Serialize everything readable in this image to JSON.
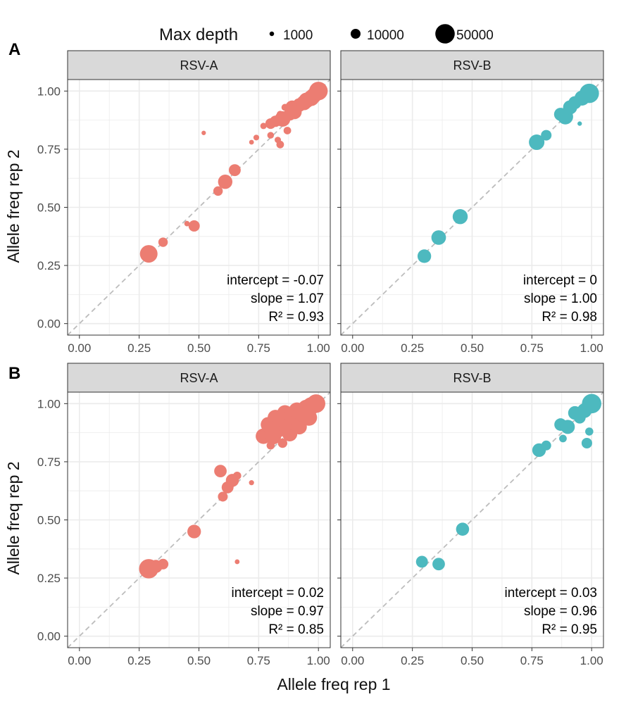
{
  "figure": {
    "legend_title": "Max depth",
    "legend_entries": [
      {
        "label": "1000",
        "value": 1000
      },
      {
        "label": "10000",
        "value": 10000
      },
      {
        "label": "50000",
        "value": 50000
      }
    ],
    "x_title": "Allele freq rep 1",
    "y_title": "Allele freq rep 2",
    "colors": {
      "RSV-A": "#ec7d72",
      "RSV-B": "#4db9bf",
      "strip": "#d9d9d9",
      "grid": "#ebebeb",
      "diagonal": "#bdbdbd"
    }
  },
  "chart_data": [
    {
      "type": "scatter",
      "row": "A",
      "panel": "RSV-A",
      "xlabel": "Allele freq rep 1",
      "ylabel": "Allele freq rep 2",
      "xlim": [
        0,
        1
      ],
      "ylim": [
        0,
        1
      ],
      "ticks": [
        0,
        0.25,
        0.5,
        0.75,
        1.0
      ],
      "tick_labels": [
        "0.00",
        "0.25",
        "0.50",
        "0.75",
        "1.00"
      ],
      "stats": {
        "intercept": "intercept = -0.07",
        "slope": "slope = 1.07",
        "r2": "R² = 0.93"
      },
      "points": [
        {
          "x": 0.29,
          "y": 0.3,
          "depth": 40000
        },
        {
          "x": 0.35,
          "y": 0.35,
          "depth": 9000
        },
        {
          "x": 0.45,
          "y": 0.43,
          "depth": 1800
        },
        {
          "x": 0.48,
          "y": 0.42,
          "depth": 14000
        },
        {
          "x": 0.52,
          "y": 0.82,
          "depth": 900
        },
        {
          "x": 0.58,
          "y": 0.57,
          "depth": 9000
        },
        {
          "x": 0.61,
          "y": 0.61,
          "depth": 25000
        },
        {
          "x": 0.65,
          "y": 0.66,
          "depth": 16000
        },
        {
          "x": 0.72,
          "y": 0.78,
          "depth": 1200
        },
        {
          "x": 0.74,
          "y": 0.8,
          "depth": 2200
        },
        {
          "x": 0.77,
          "y": 0.85,
          "depth": 3000
        },
        {
          "x": 0.8,
          "y": 0.86,
          "depth": 12000
        },
        {
          "x": 0.8,
          "y": 0.81,
          "depth": 3500
        },
        {
          "x": 0.82,
          "y": 0.87,
          "depth": 14000
        },
        {
          "x": 0.83,
          "y": 0.79,
          "depth": 3000
        },
        {
          "x": 0.84,
          "y": 0.9,
          "depth": 4000
        },
        {
          "x": 0.84,
          "y": 0.77,
          "depth": 5000
        },
        {
          "x": 0.85,
          "y": 0.88,
          "depth": 30000
        },
        {
          "x": 0.86,
          "y": 0.93,
          "depth": 4000
        },
        {
          "x": 0.87,
          "y": 0.83,
          "depth": 5000
        },
        {
          "x": 0.88,
          "y": 0.9,
          "depth": 18000
        },
        {
          "x": 0.89,
          "y": 0.93,
          "depth": 22000
        },
        {
          "x": 0.9,
          "y": 0.91,
          "depth": 25000
        },
        {
          "x": 0.92,
          "y": 0.94,
          "depth": 22000
        },
        {
          "x": 0.94,
          "y": 0.95,
          "depth": 28000
        },
        {
          "x": 0.95,
          "y": 0.96,
          "depth": 30000
        },
        {
          "x": 0.97,
          "y": 0.97,
          "depth": 32000
        },
        {
          "x": 0.98,
          "y": 0.98,
          "depth": 30000
        },
        {
          "x": 1.0,
          "y": 1.0,
          "depth": 45000
        }
      ]
    },
    {
      "type": "scatter",
      "row": "A",
      "panel": "RSV-B",
      "xlabel": "Allele freq rep 1",
      "ylabel": "Allele freq rep 2",
      "xlim": [
        0,
        1
      ],
      "ylim": [
        0,
        1
      ],
      "ticks": [
        0,
        0.25,
        0.5,
        0.75,
        1.0
      ],
      "tick_labels": [
        "0.00",
        "0.25",
        "0.50",
        "0.75",
        "1.00"
      ],
      "stats": {
        "intercept": "intercept = 0",
        "slope": "slope = 1.00",
        "r2": "R² = 0.98"
      },
      "points": [
        {
          "x": 0.3,
          "y": 0.29,
          "depth": 22000
        },
        {
          "x": 0.36,
          "y": 0.37,
          "depth": 26000
        },
        {
          "x": 0.45,
          "y": 0.46,
          "depth": 28000
        },
        {
          "x": 0.77,
          "y": 0.78,
          "depth": 30000
        },
        {
          "x": 0.81,
          "y": 0.81,
          "depth": 12000
        },
        {
          "x": 0.87,
          "y": 0.9,
          "depth": 20000
        },
        {
          "x": 0.89,
          "y": 0.89,
          "depth": 30000
        },
        {
          "x": 0.91,
          "y": 0.93,
          "depth": 24000
        },
        {
          "x": 0.93,
          "y": 0.95,
          "depth": 20000
        },
        {
          "x": 0.95,
          "y": 0.86,
          "depth": 900
        },
        {
          "x": 0.96,
          "y": 0.97,
          "depth": 28000
        },
        {
          "x": 0.99,
          "y": 0.99,
          "depth": 50000
        }
      ]
    },
    {
      "type": "scatter",
      "row": "B",
      "panel": "RSV-A",
      "xlabel": "Allele freq rep 1",
      "ylabel": "Allele freq rep 2",
      "xlim": [
        0,
        1
      ],
      "ylim": [
        0,
        1
      ],
      "ticks": [
        0,
        0.25,
        0.5,
        0.75,
        1.0
      ],
      "tick_labels": [
        "0.00",
        "0.25",
        "0.50",
        "0.75",
        "1.00"
      ],
      "stats": {
        "intercept": "intercept = 0.02",
        "slope": "slope = 0.97",
        "r2": "R² = 0.85"
      },
      "points": [
        {
          "x": 0.29,
          "y": 0.29,
          "depth": 50000
        },
        {
          "x": 0.32,
          "y": 0.3,
          "depth": 20000
        },
        {
          "x": 0.35,
          "y": 0.31,
          "depth": 12000
        },
        {
          "x": 0.48,
          "y": 0.45,
          "depth": 22000
        },
        {
          "x": 0.59,
          "y": 0.71,
          "depth": 18000
        },
        {
          "x": 0.6,
          "y": 0.6,
          "depth": 10000
        },
        {
          "x": 0.62,
          "y": 0.64,
          "depth": 16000
        },
        {
          "x": 0.64,
          "y": 0.67,
          "depth": 20000
        },
        {
          "x": 0.66,
          "y": 0.69,
          "depth": 6000
        },
        {
          "x": 0.66,
          "y": 0.32,
          "depth": 1200
        },
        {
          "x": 0.72,
          "y": 0.66,
          "depth": 1500
        },
        {
          "x": 0.77,
          "y": 0.86,
          "depth": 30000
        },
        {
          "x": 0.79,
          "y": 0.91,
          "depth": 28000
        },
        {
          "x": 0.8,
          "y": 0.82,
          "depth": 6000
        },
        {
          "x": 0.81,
          "y": 0.86,
          "depth": 34000
        },
        {
          "x": 0.82,
          "y": 0.94,
          "depth": 30000
        },
        {
          "x": 0.83,
          "y": 0.89,
          "depth": 36000
        },
        {
          "x": 0.84,
          "y": 0.92,
          "depth": 34000
        },
        {
          "x": 0.85,
          "y": 0.83,
          "depth": 9000
        },
        {
          "x": 0.86,
          "y": 0.96,
          "depth": 30000
        },
        {
          "x": 0.87,
          "y": 0.9,
          "depth": 36000
        },
        {
          "x": 0.88,
          "y": 0.87,
          "depth": 28000
        },
        {
          "x": 0.89,
          "y": 0.95,
          "depth": 36000
        },
        {
          "x": 0.9,
          "y": 0.92,
          "depth": 36000
        },
        {
          "x": 0.91,
          "y": 0.97,
          "depth": 34000
        },
        {
          "x": 0.92,
          "y": 0.9,
          "depth": 28000
        },
        {
          "x": 0.93,
          "y": 0.96,
          "depth": 38000
        },
        {
          "x": 0.95,
          "y": 0.98,
          "depth": 38000
        },
        {
          "x": 0.96,
          "y": 0.94,
          "depth": 34000
        },
        {
          "x": 0.97,
          "y": 0.99,
          "depth": 40000
        },
        {
          "x": 0.99,
          "y": 1.0,
          "depth": 45000
        }
      ]
    },
    {
      "type": "scatter",
      "row": "B",
      "panel": "RSV-B",
      "xlabel": "Allele freq rep 1",
      "ylabel": "Allele freq rep 2",
      "xlim": [
        0,
        1
      ],
      "ylim": [
        0,
        1
      ],
      "ticks": [
        0,
        0.25,
        0.5,
        0.75,
        1.0
      ],
      "tick_labels": [
        "0.00",
        "0.25",
        "0.50",
        "0.75",
        "1.00"
      ],
      "stats": {
        "intercept": "intercept = 0.03",
        "slope": "slope = 0.96",
        "r2": "R² = 0.95"
      },
      "points": [
        {
          "x": 0.29,
          "y": 0.32,
          "depth": 16000
        },
        {
          "x": 0.36,
          "y": 0.31,
          "depth": 18000
        },
        {
          "x": 0.46,
          "y": 0.46,
          "depth": 20000
        },
        {
          "x": 0.78,
          "y": 0.8,
          "depth": 22000
        },
        {
          "x": 0.81,
          "y": 0.82,
          "depth": 10000
        },
        {
          "x": 0.87,
          "y": 0.91,
          "depth": 18000
        },
        {
          "x": 0.88,
          "y": 0.85,
          "depth": 5000
        },
        {
          "x": 0.9,
          "y": 0.9,
          "depth": 24000
        },
        {
          "x": 0.93,
          "y": 0.96,
          "depth": 22000
        },
        {
          "x": 0.95,
          "y": 0.94,
          "depth": 16000
        },
        {
          "x": 0.97,
          "y": 0.97,
          "depth": 26000
        },
        {
          "x": 0.98,
          "y": 0.83,
          "depth": 12000
        },
        {
          "x": 0.99,
          "y": 0.88,
          "depth": 6000
        },
        {
          "x": 1.0,
          "y": 1.0,
          "depth": 50000
        }
      ]
    }
  ],
  "row_labels": [
    "A",
    "B"
  ]
}
